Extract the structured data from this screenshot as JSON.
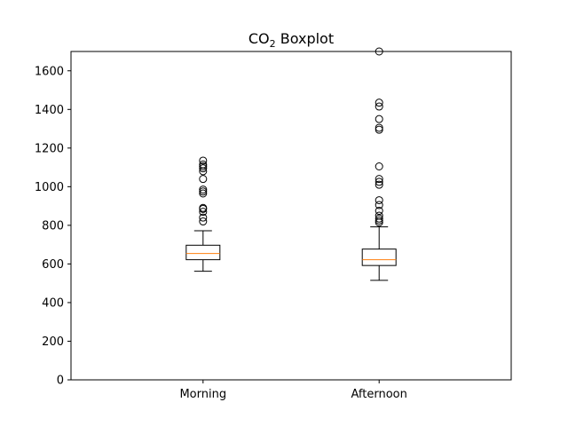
{
  "chart_data": {
    "type": "boxplot",
    "title_main": "CO",
    "title_sub": "2",
    "title_rest": " Boxplot",
    "categories": [
      "Morning",
      "Afternoon"
    ],
    "ylim": [
      0,
      1700
    ],
    "yticks": [
      0,
      200,
      400,
      600,
      800,
      1000,
      1200,
      1400,
      1600
    ],
    "grid": false,
    "colors": {
      "box": "#000000",
      "median": "#ff7f0e",
      "flier": "#000000"
    },
    "boxes": [
      {
        "name": "Morning",
        "whisker_low": 562,
        "q1": 622,
        "median": 654,
        "q3": 697,
        "whisker_high": 772,
        "fliers": [
          820,
          840,
          870,
          885,
          890,
          965,
          975,
          985,
          1040,
          1080,
          1095,
          1105,
          1115,
          1135
        ]
      },
      {
        "name": "Afternoon",
        "whisker_low": 515,
        "q1": 592,
        "median": 622,
        "q3": 677,
        "whisker_high": 792,
        "fliers": [
          815,
          825,
          835,
          850,
          875,
          905,
          930,
          1010,
          1025,
          1040,
          1105,
          1295,
          1305,
          1350,
          1415,
          1435,
          1700
        ]
      }
    ]
  }
}
